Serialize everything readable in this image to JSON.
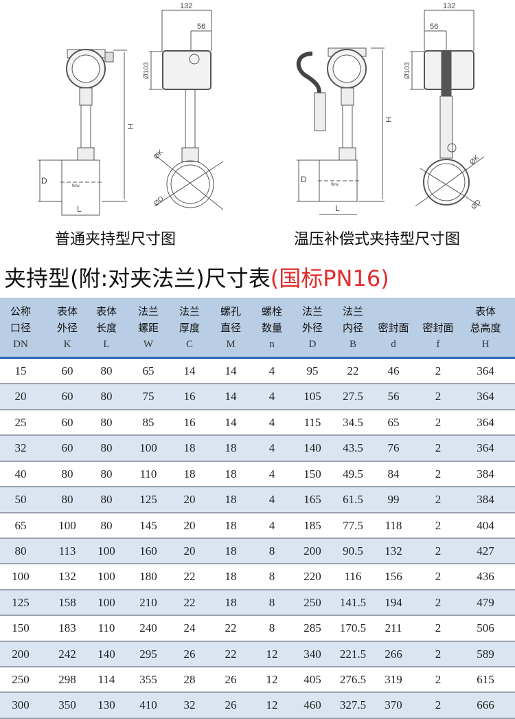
{
  "drawings": {
    "standard": {
      "caption": "普通夹持型尺寸图",
      "dims": {
        "width": "132",
        "offset": "56",
        "head_dia": "Ø103",
        "height": "H",
        "flange_dia": "D",
        "length": "L",
        "body_dia": "ØK",
        "outer_dia": "ØD"
      }
    },
    "compensated": {
      "caption": "温压补偿式夹持型尺寸图",
      "dims": {
        "width": "132",
        "offset": "56",
        "head_dia": "Ø103",
        "height": "H",
        "flange_dia": "D",
        "length": "L",
        "body_dia": "ØK",
        "outer_dia": "ØD"
      }
    },
    "flow_label": "flow"
  },
  "title": {
    "main": "夹持型(附:对夹法兰)尺寸表",
    "standard": "(国标PN16)",
    "accent_color": "#e52b2b"
  },
  "table": {
    "header_bg": "#b9cde5",
    "alt_row_bg": "#dbe5f2",
    "columns": [
      {
        "line1": "公称",
        "line2": "口径",
        "symbol": "DN"
      },
      {
        "line1": "表体",
        "line2": "外径",
        "symbol": "K"
      },
      {
        "line1": "表体",
        "line2": "长度",
        "symbol": "L"
      },
      {
        "line1": "法兰",
        "line2": "螺距",
        "symbol": "W"
      },
      {
        "line1": "法兰",
        "line2": "厚度",
        "symbol": "C"
      },
      {
        "line1": "螺孔",
        "line2": "直径",
        "symbol": "M"
      },
      {
        "line1": "螺栓",
        "line2": "数量",
        "symbol": "n"
      },
      {
        "line1": "法兰",
        "line2": "外径",
        "symbol": "D"
      },
      {
        "line1": "法兰",
        "line2": "内径",
        "symbol": "B"
      },
      {
        "line1": "",
        "line2": "密封面",
        "symbol": "d"
      },
      {
        "line1": "",
        "line2": "密封面",
        "symbol": "f"
      },
      {
        "line1": "表体",
        "line2": "总高度",
        "symbol": "H"
      }
    ],
    "rows": [
      [
        "15",
        "60",
        "80",
        "65",
        "14",
        "14",
        "4",
        "95",
        "22",
        "46",
        "2",
        "364"
      ],
      [
        "20",
        "60",
        "80",
        "75",
        "16",
        "14",
        "4",
        "105",
        "27.5",
        "56",
        "2",
        "364"
      ],
      [
        "25",
        "60",
        "80",
        "85",
        "16",
        "14",
        "4",
        "115",
        "34.5",
        "65",
        "2",
        "364"
      ],
      [
        "32",
        "60",
        "80",
        "100",
        "18",
        "18",
        "4",
        "140",
        "43.5",
        "76",
        "2",
        "364"
      ],
      [
        "40",
        "80",
        "80",
        "110",
        "18",
        "18",
        "4",
        "150",
        "49.5",
        "84",
        "2",
        "384"
      ],
      [
        "50",
        "80",
        "80",
        "125",
        "20",
        "18",
        "4",
        "165",
        "61.5",
        "99",
        "2",
        "384"
      ],
      [
        "65",
        "100",
        "80",
        "145",
        "20",
        "18",
        "4",
        "185",
        "77.5",
        "118",
        "2",
        "404"
      ],
      [
        "80",
        "113",
        "100",
        "160",
        "20",
        "18",
        "8",
        "200",
        "90.5",
        "132",
        "2",
        "427"
      ],
      [
        "100",
        "132",
        "100",
        "180",
        "22",
        "18",
        "8",
        "220",
        "116",
        "156",
        "2",
        "436"
      ],
      [
        "125",
        "158",
        "100",
        "210",
        "22",
        "18",
        "8",
        "250",
        "141.5",
        "194",
        "2",
        "479"
      ],
      [
        "150",
        "183",
        "110",
        "240",
        "24",
        "22",
        "8",
        "285",
        "170.5",
        "211",
        "2",
        "506"
      ],
      [
        "200",
        "242",
        "140",
        "295",
        "26",
        "22",
        "12",
        "340",
        "221.5",
        "266",
        "2",
        "589"
      ],
      [
        "250",
        "298",
        "114",
        "355",
        "28",
        "26",
        "12",
        "405",
        "276.5",
        "319",
        "2",
        "615"
      ],
      [
        "300",
        "350",
        "130",
        "410",
        "32",
        "26",
        "12",
        "460",
        "327.5",
        "370",
        "2",
        "666"
      ]
    ]
  }
}
